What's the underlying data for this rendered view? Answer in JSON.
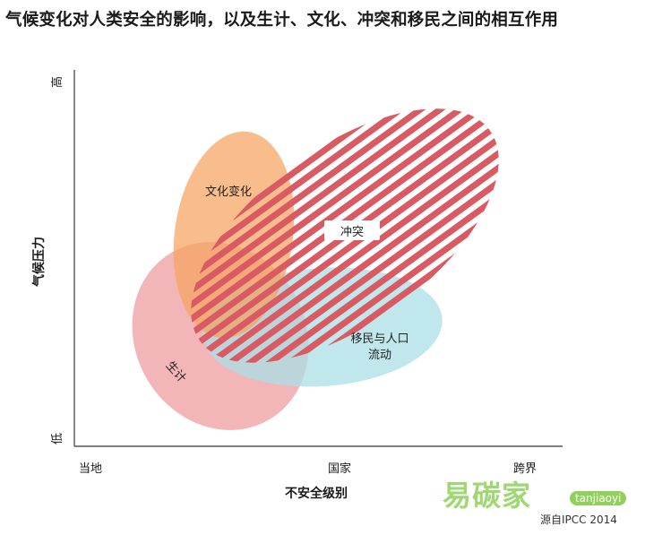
{
  "title": "气候变化对人类安全的影响，以及生计、文化、冲突和移民之间的相互作用",
  "x_axis": {
    "title": "不安全级别",
    "ticks": [
      "当地",
      "国家",
      "跨界"
    ]
  },
  "y_axis": {
    "title": "气候压力",
    "high": "高",
    "low": "低"
  },
  "regions": {
    "culture": {
      "label": "文化变化",
      "color": "#f4a86a"
    },
    "conflict": {
      "label": "冲突",
      "color": "#d95a62"
    },
    "migration": {
      "label_line1": "移民与人口",
      "label_line2": "流动",
      "color": "#a9dfe6"
    },
    "livelihood": {
      "label": "生计",
      "color": "#ee9a9c"
    }
  },
  "source": "源自IPCC 2014",
  "watermark": {
    "text": "易碳家",
    "badge": "tanjiaoyi"
  }
}
